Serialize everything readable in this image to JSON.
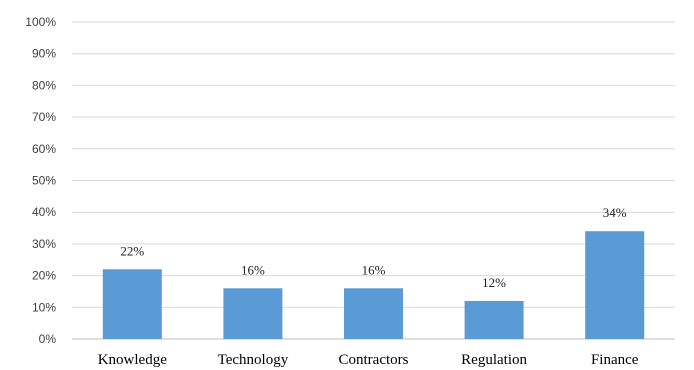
{
  "chart_data": {
    "type": "bar",
    "categories": [
      "Knowledge",
      "Technology",
      "Contractors",
      "Regulation",
      "Finance"
    ],
    "values": [
      22,
      16,
      16,
      12,
      34
    ],
    "data_labels": [
      "22%",
      "16%",
      "16%",
      "12%",
      "34%"
    ],
    "y_ticks": [
      "0%",
      "10%",
      "20%",
      "30%",
      "40%",
      "50%",
      "60%",
      "70%",
      "80%",
      "90%",
      "100%"
    ],
    "ylim": [
      0,
      100
    ],
    "title": "",
    "xlabel": "",
    "ylabel": "",
    "grid": true,
    "legend": "none",
    "bar_color": "#5b9bd5"
  }
}
